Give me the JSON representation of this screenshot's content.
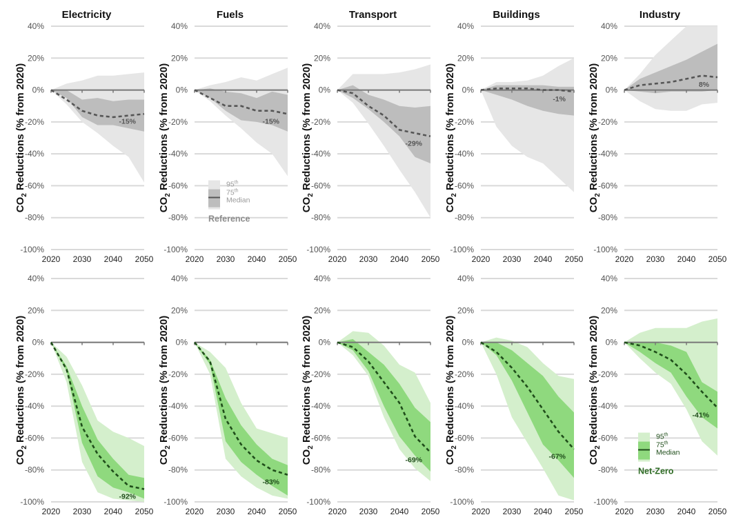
{
  "chart_data": {
    "type": "area",
    "description": "Small-multiple percentile band charts of CO2 reductions by sector, Reference vs Net-Zero scenarios",
    "x": [
      2020,
      2025,
      2030,
      2035,
      2040,
      2045,
      2050
    ],
    "xticks": [
      "2020",
      "2030",
      "2040",
      "2050"
    ],
    "yticks": [
      "40%",
      "20%",
      "0%",
      "-20%",
      "-40%",
      "-60%",
      "-80%",
      "-100%"
    ],
    "ylim": [
      -100,
      40
    ],
    "ylabel_main": "CO",
    "ylabel_sub": "2",
    "ylabel_rest": " Reductions (% from 2020)",
    "grid": true,
    "sectors": [
      "Electricity",
      "Fuels",
      "Transport",
      "Buildings",
      "Industry"
    ],
    "rows": [
      {
        "scenario": "Reference",
        "colors": {
          "p95": "#e6e6e6",
          "p75": "#bdbdbd",
          "median": "#555555",
          "label": "#555555",
          "legend_title": "#8c8c8c"
        },
        "legend": {
          "sector_index": 1,
          "p95": "95th",
          "p75": "75th",
          "median": "Median",
          "title": "Reference"
        },
        "panels": [
          {
            "sector": "Electricity",
            "p95_hi": [
              0,
              4,
              6,
              9,
              9,
              10,
              11
            ],
            "p95_lo": [
              0,
              -9,
              -20,
              -27,
              -35,
              -42,
              -58
            ],
            "p75_hi": [
              0,
              0,
              -6,
              -5,
              -7,
              -6,
              -6
            ],
            "p75_lo": [
              0,
              -5,
              -17,
              -22,
              -22,
              -24,
              -26
            ],
            "median": [
              0,
              -6,
              -13,
              -16,
              -17,
              -16,
              -15
            ],
            "label": "-15%"
          },
          {
            "sector": "Fuels",
            "p95_hi": [
              0,
              3,
              5,
              8,
              6,
              10,
              14
            ],
            "p95_lo": [
              0,
              -7,
              -16,
              -24,
              -33,
              -40,
              -54
            ],
            "p75_hi": [
              0,
              1,
              -1,
              -2,
              -5,
              -1,
              -3
            ],
            "p75_lo": [
              0,
              -5,
              -13,
              -19,
              -20,
              -22,
              -26
            ],
            "median": [
              0,
              -5,
              -10,
              -10,
              -13,
              -13,
              -15
            ],
            "label": "-15%"
          },
          {
            "sector": "Transport",
            "p95_hi": [
              0,
              10,
              10,
              10,
              11,
              13,
              16
            ],
            "p95_lo": [
              0,
              -8,
              -21,
              -35,
              -50,
              -64,
              -80
            ],
            "p75_hi": [
              0,
              3,
              -3,
              -6,
              -10,
              -11,
              -10
            ],
            "p75_lo": [
              0,
              -5,
              -12,
              -20,
              -29,
              -42,
              -46
            ],
            "median": [
              0,
              -2,
              -10,
              -16,
              -25,
              -27,
              -29
            ],
            "label": "-29%"
          },
          {
            "sector": "Buildings",
            "p95_hi": [
              0,
              5,
              5,
              6,
              9,
              15,
              20
            ],
            "p95_lo": [
              0,
              -23,
              -35,
              -42,
              -46,
              -55,
              -64
            ],
            "p75_hi": [
              0,
              3,
              3,
              3,
              3,
              2,
              2
            ],
            "p75_lo": [
              0,
              -3,
              -6,
              -10,
              -13,
              -15,
              -16
            ],
            "median": [
              0,
              1,
              1,
              1,
              0,
              0,
              -1
            ],
            "label": "-1%"
          },
          {
            "sector": "Industry",
            "p95_hi": [
              0,
              10,
              22,
              31,
              40,
              40,
              40
            ],
            "p95_lo": [
              0,
              -7,
              -12,
              -13,
              -13,
              -9,
              -8
            ],
            "p75_hi": [
              0,
              7,
              11,
              15,
              19,
              24,
              29
            ],
            "p75_lo": [
              0,
              -1,
              -2,
              -1,
              -1,
              -1,
              0
            ],
            "median": [
              0,
              3,
              4,
              5,
              7,
              9,
              8
            ],
            "label": "8%"
          }
        ]
      },
      {
        "scenario": "Net-Zero",
        "colors": {
          "p95": "#d4efcc",
          "p75": "#8fd97e",
          "median": "#1f4d1a",
          "label": "#1f4d1a",
          "legend_title": "#2e6b24"
        },
        "legend": {
          "sector_index": 4,
          "p95": "95th",
          "p75": "75th",
          "median": "Median",
          "title": "Net-Zero"
        },
        "panels": [
          {
            "sector": "Electricity",
            "p95_hi": [
              0,
              -9,
              -27,
              -49,
              -56,
              -60,
              -65
            ],
            "p95_lo": [
              0,
              -25,
              -75,
              -94,
              -98,
              -99,
              -100
            ],
            "p75_hi": [
              0,
              -15,
              -40,
              -61,
              -73,
              -83,
              -85
            ],
            "p75_lo": [
              0,
              -18,
              -63,
              -84,
              -91,
              -94,
              -98
            ],
            "median": [
              0,
              -17,
              -53,
              -70,
              -81,
              -90,
              -92
            ],
            "label": "-92%"
          },
          {
            "sector": "Fuels",
            "p95_hi": [
              0,
              -6,
              -16,
              -38,
              -54,
              -57,
              -60
            ],
            "p95_lo": [
              0,
              -20,
              -73,
              -84,
              -91,
              -96,
              -98
            ],
            "p75_hi": [
              0,
              -11,
              -35,
              -52,
              -64,
              -73,
              -77
            ],
            "p75_lo": [
              0,
              -14,
              -62,
              -75,
              -83,
              -90,
              -96
            ],
            "median": [
              0,
              -12,
              -48,
              -64,
              -74,
              -80,
              -83
            ],
            "label": "-83%"
          },
          {
            "sector": "Transport",
            "p95_hi": [
              0,
              7,
              6,
              -2,
              -14,
              -19,
              -38
            ],
            "p95_lo": [
              0,
              -8,
              -21,
              -47,
              -67,
              -79,
              -87
            ],
            "p75_hi": [
              0,
              2,
              -6,
              -14,
              -26,
              -41,
              -50
            ],
            "p75_lo": [
              0,
              -5,
              -18,
              -40,
              -59,
              -71,
              -81
            ],
            "median": [
              0,
              -3,
              -12,
              -25,
              -38,
              -59,
              -69
            ],
            "label": "-69%"
          },
          {
            "sector": "Buildings",
            "p95_hi": [
              0,
              3,
              1,
              -3,
              -13,
              -21,
              -23
            ],
            "p95_lo": [
              0,
              -20,
              -47,
              -63,
              -79,
              -96,
              -99
            ],
            "p75_hi": [
              0,
              0,
              -5,
              -13,
              -21,
              -34,
              -44
            ],
            "p75_lo": [
              0,
              -8,
              -24,
              -44,
              -64,
              -74,
              -85
            ],
            "median": [
              0,
              -6,
              -16,
              -28,
              -42,
              -56,
              -67
            ],
            "label": "-67%"
          },
          {
            "sector": "Industry",
            "p95_hi": [
              0,
              6,
              9,
              9,
              9,
              13,
              15
            ],
            "p95_lo": [
              0,
              -10,
              -19,
              -26,
              -42,
              -62,
              -71
            ],
            "p75_hi": [
              0,
              0,
              0,
              -2,
              -6,
              -25,
              -31
            ],
            "p75_lo": [
              0,
              -6,
              -13,
              -19,
              -34,
              -47,
              -54
            ],
            "median": [
              0,
              -2,
              -6,
              -11,
              -20,
              -31,
              -41
            ],
            "label": "-41%"
          }
        ]
      }
    ]
  }
}
